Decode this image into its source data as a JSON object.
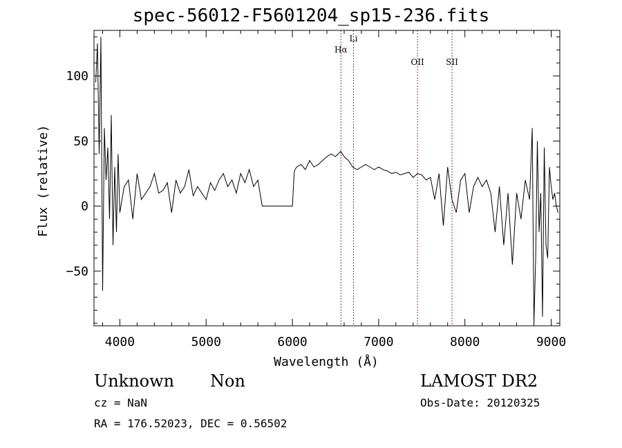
{
  "chart_data": {
    "type": "line",
    "title": "spec-56012-F5601204_sp15-236.fits",
    "xlabel": "Wavelength (Å)",
    "ylabel": "Flux (relative)",
    "xlim": [
      3700,
      9100
    ],
    "ylim": [
      -92,
      135
    ],
    "xticks": [
      4000,
      5000,
      6000,
      7000,
      8000,
      9000
    ],
    "yticks": [
      -50,
      0,
      50,
      100
    ],
    "line_color": "#000000",
    "marker_color": "#b22222",
    "series": [
      {
        "x": [
          3720,
          3740,
          3760,
          3780,
          3800,
          3820,
          3840,
          3860,
          3880,
          3900,
          3920,
          3940,
          3960,
          3980,
          4000,
          4050,
          4100,
          4150,
          4200,
          4250,
          4300,
          4350,
          4400,
          4450,
          4500,
          4550,
          4600,
          4650,
          4700,
          4750,
          4800,
          4850,
          4900,
          4950,
          5000,
          5050,
          5100,
          5150,
          5200,
          5250,
          5300,
          5350,
          5400,
          5450,
          5500,
          5550,
          5600,
          5650,
          5660,
          5700,
          5800,
          5900,
          6000,
          6020,
          6030,
          6050,
          6100,
          6150,
          6200,
          6250,
          6300,
          6350,
          6400,
          6450,
          6500,
          6530,
          6560,
          6600,
          6650,
          6700,
          6750,
          6800,
          6850,
          6900,
          6950,
          7000,
          7050,
          7100,
          7150,
          7200,
          7250,
          7300,
          7350,
          7400,
          7450,
          7500,
          7550,
          7600,
          7650,
          7700,
          7750,
          7800,
          7850,
          7900,
          7950,
          8000,
          8050,
          8100,
          8150,
          8200,
          8250,
          8300,
          8350,
          8400,
          8450,
          8500,
          8550,
          8600,
          8650,
          8700,
          8750,
          8780,
          8800,
          8820,
          8840,
          8860,
          8880,
          8900,
          8920,
          8940,
          8960,
          8980,
          9000,
          9020,
          9040,
          9060,
          9080
        ],
        "y": [
          95,
          125,
          40,
          130,
          -65,
          60,
          20,
          45,
          -10,
          70,
          -30,
          30,
          -20,
          40,
          -5,
          15,
          20,
          -10,
          25,
          5,
          10,
          15,
          25,
          10,
          12,
          18,
          -5,
          20,
          10,
          15,
          28,
          8,
          15,
          10,
          5,
          18,
          12,
          20,
          25,
          15,
          20,
          10,
          25,
          18,
          28,
          15,
          20,
          0,
          0,
          0,
          0,
          0,
          0,
          25,
          28,
          30,
          32,
          28,
          35,
          30,
          32,
          35,
          38,
          40,
          38,
          40,
          42,
          38,
          35,
          30,
          28,
          30,
          32,
          30,
          28,
          30,
          28,
          27,
          25,
          26,
          24,
          25,
          26,
          22,
          25,
          24,
          20,
          22,
          5,
          25,
          -15,
          30,
          5,
          -5,
          20,
          25,
          -5,
          15,
          22,
          15,
          20,
          10,
          -20,
          15,
          -30,
          10,
          -45,
          10,
          -10,
          20,
          5,
          60,
          -90,
          -40,
          50,
          -20,
          10,
          -85,
          45,
          -30,
          -40,
          30,
          15,
          5,
          10,
          0,
          -5
        ]
      }
    ],
    "lines": [
      {
        "label": "Hα",
        "x": 6563
      },
      {
        "label": "Li",
        "x": 6708
      },
      {
        "label": "OII",
        "x": 7450
      },
      {
        "label": "SII",
        "x": 7850
      }
    ]
  },
  "footer": {
    "class": "Unknown",
    "subclass": "Non",
    "survey": "LAMOST DR2",
    "cz": "cz = NaN",
    "obs_date": "Obs-Date: 20120325",
    "radec": "RA = 176.52023, DEC =    0.56502"
  }
}
